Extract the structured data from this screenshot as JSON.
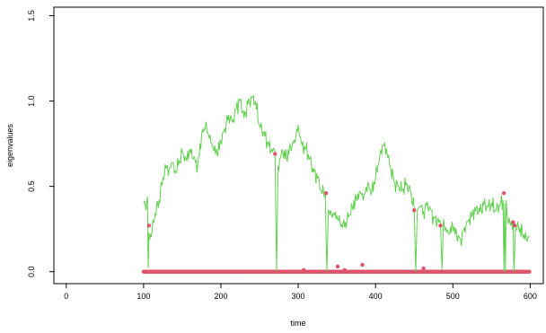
{
  "chart_data": {
    "type": "line",
    "title": "",
    "xlabel": "time",
    "ylabel": "eigenvalues",
    "xlim": [
      -16,
      617
    ],
    "ylim": [
      -0.07,
      1.55
    ],
    "x_ticks": [
      0,
      100,
      200,
      300,
      400,
      500,
      600
    ],
    "y_ticks": [
      0.0,
      0.5,
      1.0,
      1.5
    ],
    "x_tick_labels": [
      "0",
      "100",
      "200",
      "300",
      "400",
      "500",
      "600"
    ],
    "y_tick_labels": [
      "0.0",
      "0.5",
      "1.0",
      "1.5"
    ],
    "grid": false,
    "legend": "none",
    "colors": {
      "line": "#61D04F",
      "points": "#DF536B"
    },
    "series": [
      {
        "kind": "line",
        "color": "#61D04F",
        "x_range": [
          100,
          599
        ],
        "anchors": [
          [
            100,
            0.4
          ],
          [
            103,
            0.36
          ],
          [
            105,
            0.44
          ],
          [
            106,
            0.02
          ],
          [
            107,
            0.23
          ],
          [
            109,
            0.22
          ],
          [
            111,
            0.24
          ],
          [
            115,
            0.34
          ],
          [
            120,
            0.42
          ],
          [
            125,
            0.55
          ],
          [
            130,
            0.62
          ],
          [
            133,
            0.6
          ],
          [
            137,
            0.64
          ],
          [
            140,
            0.58
          ],
          [
            145,
            0.62
          ],
          [
            150,
            0.7
          ],
          [
            155,
            0.66
          ],
          [
            160,
            0.72
          ],
          [
            165,
            0.67
          ],
          [
            170,
            0.62
          ],
          [
            175,
            0.8
          ],
          [
            180,
            0.85
          ],
          [
            185,
            0.78
          ],
          [
            190,
            0.72
          ],
          [
            195,
            0.69
          ],
          [
            200,
            0.76
          ],
          [
            205,
            0.84
          ],
          [
            210,
            0.92
          ],
          [
            215,
            0.88
          ],
          [
            220,
            0.96
          ],
          [
            225,
            1.01
          ],
          [
            230,
            0.9
          ],
          [
            235,
            0.98
          ],
          [
            240,
            1.02
          ],
          [
            245,
            1.0
          ],
          [
            250,
            0.86
          ],
          [
            255,
            0.82
          ],
          [
            260,
            0.76
          ],
          [
            265,
            0.71
          ],
          [
            270,
            0.7
          ],
          [
            272,
            0.0
          ],
          [
            274,
            0.62
          ],
          [
            276,
            0.66
          ],
          [
            280,
            0.7
          ],
          [
            285,
            0.67
          ],
          [
            290,
            0.73
          ],
          [
            295,
            0.77
          ],
          [
            300,
            0.86
          ],
          [
            305,
            0.74
          ],
          [
            310,
            0.72
          ],
          [
            315,
            0.66
          ],
          [
            320,
            0.58
          ],
          [
            325,
            0.55
          ],
          [
            330,
            0.47
          ],
          [
            335,
            0.46
          ],
          [
            337,
            0.0
          ],
          [
            339,
            0.36
          ],
          [
            343,
            0.34
          ],
          [
            348,
            0.35
          ],
          [
            352,
            0.3
          ],
          [
            356,
            0.28
          ],
          [
            360,
            0.26
          ],
          [
            365,
            0.32
          ],
          [
            370,
            0.38
          ],
          [
            375,
            0.43
          ],
          [
            380,
            0.47
          ],
          [
            385,
            0.45
          ],
          [
            390,
            0.52
          ],
          [
            395,
            0.46
          ],
          [
            400,
            0.55
          ],
          [
            405,
            0.66
          ],
          [
            410,
            0.74
          ],
          [
            415,
            0.69
          ],
          [
            420,
            0.6
          ],
          [
            425,
            0.52
          ],
          [
            430,
            0.5
          ],
          [
            435,
            0.48
          ],
          [
            440,
            0.52
          ],
          [
            445,
            0.47
          ],
          [
            450,
            0.37
          ],
          [
            452,
            0.0
          ],
          [
            454,
            0.36
          ],
          [
            458,
            0.38
          ],
          [
            462,
            0.35
          ],
          [
            466,
            0.39
          ],
          [
            470,
            0.38
          ],
          [
            475,
            0.32
          ],
          [
            480,
            0.3
          ],
          [
            484,
            0.28
          ],
          [
            486,
            0.01
          ],
          [
            488,
            0.31
          ],
          [
            490,
            0.24
          ],
          [
            495,
            0.22
          ],
          [
            500,
            0.26
          ],
          [
            505,
            0.21
          ],
          [
            510,
            0.19
          ],
          [
            515,
            0.26
          ],
          [
            520,
            0.3
          ],
          [
            525,
            0.34
          ],
          [
            530,
            0.37
          ],
          [
            535,
            0.35
          ],
          [
            540,
            0.39
          ],
          [
            545,
            0.38
          ],
          [
            550,
            0.4
          ],
          [
            555,
            0.36
          ],
          [
            560,
            0.39
          ],
          [
            565,
            0.42
          ],
          [
            566,
            0.0
          ],
          [
            567,
            0.4
          ],
          [
            568,
            0.0
          ],
          [
            569,
            0.42
          ],
          [
            571,
            0.3
          ],
          [
            575,
            0.27
          ],
          [
            578,
            0.28
          ],
          [
            579,
            0.0
          ],
          [
            581,
            0.25
          ],
          [
            585,
            0.26
          ],
          [
            590,
            0.22
          ],
          [
            595,
            0.2
          ],
          [
            599,
            0.21
          ]
        ]
      },
      {
        "kind": "points",
        "color": "#DF536B",
        "baseline": {
          "x_range": [
            100,
            599
          ],
          "y": 0.0
        },
        "points": [
          [
            107,
            0.27
          ],
          [
            270,
            0.69
          ],
          [
            307,
            0.01
          ],
          [
            336,
            0.46
          ],
          [
            351,
            0.03
          ],
          [
            360,
            0.01
          ],
          [
            383,
            0.04
          ],
          [
            450,
            0.36
          ],
          [
            462,
            0.02
          ],
          [
            484,
            0.27
          ],
          [
            566,
            0.46
          ],
          [
            578,
            0.29
          ],
          [
            580,
            0.27
          ]
        ]
      }
    ]
  }
}
